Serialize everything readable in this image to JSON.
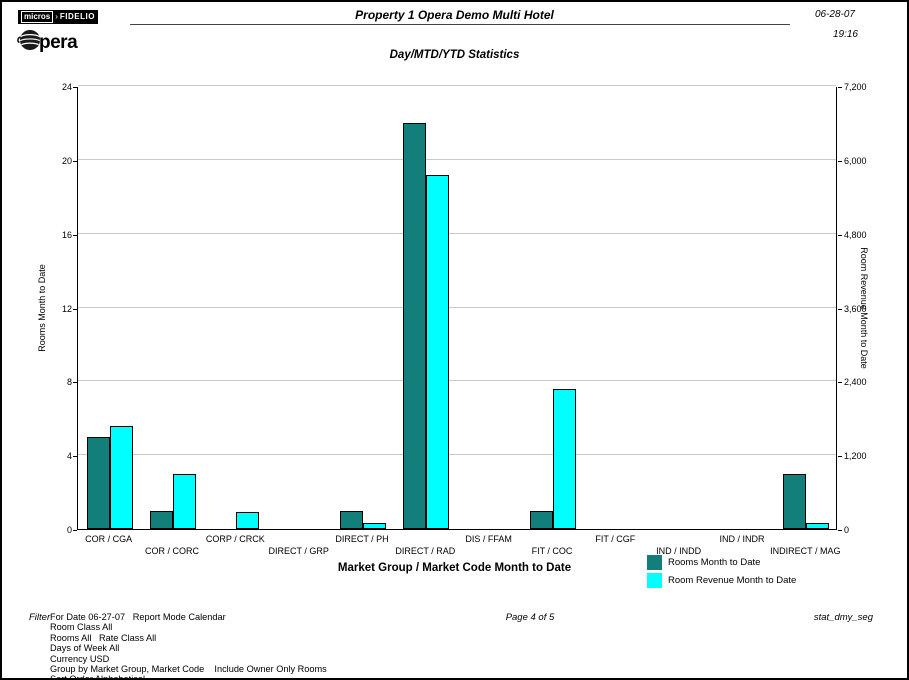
{
  "header": {
    "brand_micros": "micros",
    "brand_sep": "›",
    "brand_fidelio": "FIDELIO",
    "opera_text": "pera",
    "title": "Property 1 Opera Demo Multi Hotel",
    "date": "06-28-07",
    "time": "19:16",
    "subtitle": "Day/MTD/YTD Statistics"
  },
  "chart_data": {
    "type": "bar",
    "title": "Day/MTD/YTD Statistics",
    "categories": [
      "COR / CGA",
      "COR / CORC",
      "CORP / CRCK",
      "DIRECT / GRP",
      "DIRECT / PH",
      "DIRECT / RAD",
      "DIS / FFAM",
      "FIT / COC",
      "FIT / CGF",
      "IND / INDD",
      "IND / INDR",
      "INDIRECT / MAG"
    ],
    "series": [
      {
        "name": "Rooms Month to Date",
        "axis": "left",
        "color": "#137f7b",
        "values": [
          5,
          1,
          0,
          0,
          1,
          22,
          0,
          1,
          0,
          0,
          0,
          3
        ]
      },
      {
        "name": "Room Revenue Month to Date",
        "axis": "right",
        "color": "#00ffff",
        "values": [
          1680,
          900,
          270,
          0,
          100,
          5760,
          0,
          2280,
          0,
          0,
          0,
          90
        ]
      }
    ],
    "left_axis": {
      "label": "Rooms Month to Date",
      "min": 0,
      "max": 24,
      "ticks": [
        0,
        4,
        8,
        12,
        16,
        20,
        24
      ]
    },
    "right_axis": {
      "label": "Room Revenue Month to Date",
      "min": 0,
      "max": 7200,
      "tick_values": [
        0,
        1200,
        2400,
        3600,
        4800,
        6000,
        7200
      ],
      "tick_labels": [
        "0",
        "1,200",
        "2,400",
        "3,600",
        "4,800",
        "6,000",
        "7,200"
      ]
    },
    "xlabel": "Market Group / Market Code Month to Date",
    "grid": true,
    "legend_position": "bottom-right"
  },
  "legend": [
    {
      "label": "Rooms Month to Date",
      "color": "#137f7b"
    },
    {
      "label": "Room Revenue Month to Date",
      "color": "#00ffff"
    }
  ],
  "footer": {
    "filter_label": "Filter",
    "filter_lines": [
      "For Date 06-27-07   Report Mode Calendar",
      "Room Class All",
      "Rooms All   Rate Class All",
      "Days of Week All",
      "Currency USD",
      "Group by Market Group, Market Code    Include Owner Only Rooms",
      "Sort Order Alphabetical"
    ],
    "page": "Page 4 of 5",
    "report_id": "stat_dmy_seg"
  }
}
